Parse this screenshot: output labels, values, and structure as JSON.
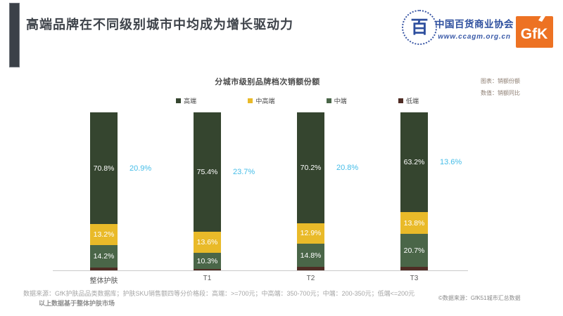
{
  "slide": {
    "title": "高端品牌在不同级别城市中均成为增长驱动力"
  },
  "logos": {
    "ccagm": {
      "org_name": "中国百货商业协会",
      "website": "www.ccagm.org.cn",
      "emblem_glyph": "百",
      "color": "#2e4f9e"
    },
    "gfk": {
      "label": "GfK",
      "color": "#ed7223"
    }
  },
  "chart": {
    "title": "分城市级别品牌档次销额份额",
    "notes": [
      "图表：销额份额",
      "数值：销额同比"
    ]
  },
  "chart_data": {
    "type": "bar",
    "stacked": true,
    "orientation": "vertical",
    "unit": "%",
    "ylim": [
      0,
      100
    ],
    "grid": false,
    "legend_position": "top",
    "categories": [
      "整体护肤",
      "T1",
      "T2",
      "T3"
    ],
    "series": [
      {
        "name": "高端",
        "color": "#35452f",
        "values": [
          70.8,
          75.4,
          70.2,
          63.2
        ],
        "show_labels": true
      },
      {
        "name": "中高端",
        "color": "#e9ba29",
        "values": [
          13.2,
          13.6,
          12.9,
          13.8
        ],
        "show_labels": true
      },
      {
        "name": "中端",
        "color": "#4a6648",
        "values": [
          14.2,
          10.3,
          14.8,
          20.7
        ],
        "show_labels": true
      },
      {
        "name": "低端",
        "color": "#4f2c24",
        "values": [
          1.8,
          0.7,
          2.1,
          2.3
        ],
        "show_labels": false
      }
    ],
    "secondary_labels": {
      "name": "销额同比",
      "color": "#45bde8",
      "values": [
        20.9,
        23.7,
        20.8,
        13.6
      ]
    },
    "label_color": "#ffffff"
  },
  "footer": {
    "source_line": "数据来源：GfK护肤品品类数据库；护肤SKU销售额四等分价格段：高端：>=700元；中高端：350-700元；中端：200-350元；低端<=200元",
    "basis_line": "以上数据基于整体护肤市场",
    "copyright": "©数据来源：GfK51城市汇总数据"
  }
}
